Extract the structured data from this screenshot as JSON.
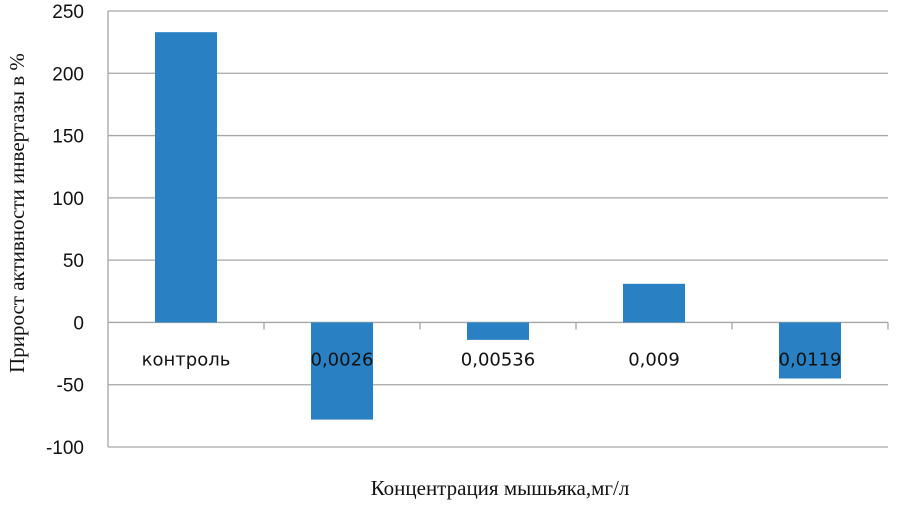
{
  "chart_data": {
    "type": "bar",
    "title": "",
    "xlabel": "Концентрация мышьяка,мг/л",
    "ylabel": "Прирост активности инвертазы в %",
    "categories": [
      "контроль",
      "0,0026",
      "0,00536",
      "0,009",
      "0,0119"
    ],
    "values": [
      233,
      -78,
      -14,
      31,
      -45
    ],
    "ylim": [
      -100,
      250
    ],
    "yticks": [
      250,
      200,
      150,
      100,
      50,
      0,
      -50,
      -100
    ],
    "grid": true,
    "legend": "none",
    "bar_color": "#2980c3",
    "grid_color": "#a6a6a6"
  }
}
